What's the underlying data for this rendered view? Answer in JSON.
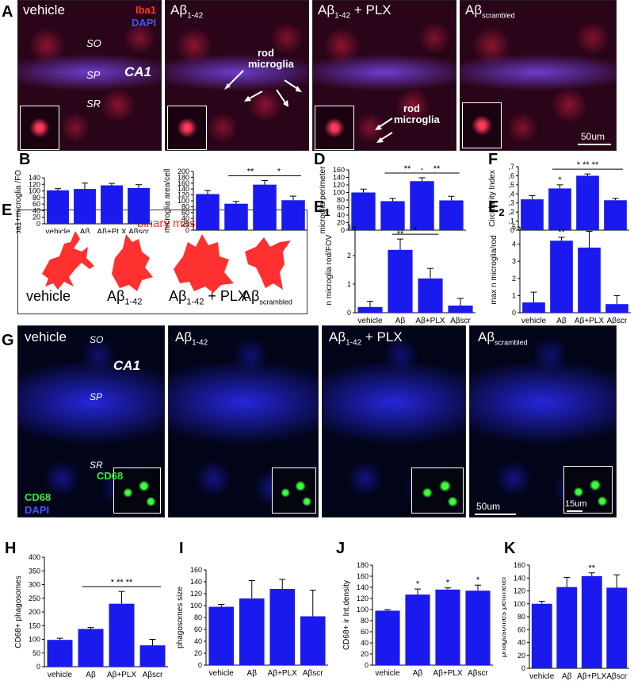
{
  "panel_letters": {
    "A": "A",
    "B": "B",
    "D": "D",
    "F": "F",
    "E": "E",
    "E1": "E",
    "E1_sub": "1",
    "E2": "E",
    "E2_sub": "2",
    "G": "G",
    "H": "H",
    "I": "I",
    "J": "J",
    "K": "K"
  },
  "micrographs_A": {
    "titles": [
      "vehicle",
      "Aβ",
      "Aβ",
      "Aβ"
    ],
    "title_subs": [
      "",
      "1-42",
      "1-42",
      "scrambled"
    ],
    "title_suffix": [
      "",
      "",
      " + PLX",
      ""
    ],
    "legend_iba1": "Iba1",
    "legend_dapi": "DAPI",
    "layers": {
      "so": "SO",
      "sp": "SP",
      "sr": "SR",
      "ca1": "CA1"
    },
    "rod_label_1": "rod",
    "rod_label_2": "microglia",
    "rod_label_3": "rod",
    "rod_label_4": "microglia",
    "scale": "50um"
  },
  "micrographs_G": {
    "titles": [
      "vehicle",
      "Aβ",
      "Aβ",
      "Aβ"
    ],
    "title_subs": [
      "",
      "1-42",
      "1-42",
      "scrambled"
    ],
    "title_suffix": [
      "",
      "",
      " + PLX",
      ""
    ],
    "layers": {
      "so": "SO",
      "sp": "SP",
      "sr": "SR",
      "ca1": "CA1"
    },
    "legend_cd68": "CD68",
    "legend_dapi": "DAPI",
    "inset_label": "CD68",
    "scale": "50um",
    "inset_scale": "15um"
  },
  "mask_panel": {
    "title": "binary mask",
    "labels": [
      "vehicle",
      "Aβ",
      "Aβ",
      "Aβ"
    ],
    "label_subs": [
      "",
      "1-42",
      "1-42",
      "scrambled"
    ],
    "label_suffix": [
      "",
      "",
      " + PLX",
      ""
    ]
  },
  "colors": {
    "bar": "#1a1aee",
    "mask": "#ff3030",
    "iba1": "#ff3333",
    "dapi": "#3344ff",
    "cd68": "#33ee33"
  },
  "chart_data": [
    {
      "id": "B1",
      "type": "bar",
      "categories": [
        "vehicle",
        "Aβ",
        "Aβ+PLX",
        "Aβscr"
      ],
      "values": [
        102,
        106,
        117,
        109
      ],
      "errors": [
        5,
        18,
        6,
        10
      ],
      "ylabel": "Iba1+microglia /FOV",
      "ylim": [
        0,
        140
      ],
      "yticks": [
        "0",
        "20",
        "40",
        "60",
        "80",
        "100",
        "120",
        "140"
      ],
      "sig": []
    },
    {
      "id": "B2",
      "type": "bar",
      "categories": [
        "vehicle",
        "Aβ",
        "Aβ+PLX",
        "Aβscr"
      ],
      "values": [
        123,
        90,
        155,
        102
      ],
      "errors": [
        12,
        8,
        14,
        14
      ],
      "ylabel": "microglia area/cell",
      "ylim": [
        0,
        200
      ],
      "yticks": [
        "0",
        "20",
        "40",
        "60",
        "80",
        "100",
        "120",
        "140",
        "160",
        "180",
        "200"
      ],
      "sig": [
        {
          "from": 1,
          "to": 2,
          "label": "**"
        },
        {
          "from": 2,
          "to": 3,
          "label": "*"
        }
      ]
    },
    {
      "id": "D",
      "type": "bar",
      "categories": [
        "vehicle",
        "Aβ",
        "Aβ+PLX",
        "Aβscr"
      ],
      "values": [
        100,
        77,
        130,
        79
      ],
      "errors": [
        9,
        7,
        9,
        11
      ],
      "ylabel": "microglia perimeter",
      "ylim": [
        0,
        160
      ],
      "yticks": [
        "0",
        "20",
        "40",
        "60",
        "80",
        "100",
        "120",
        "140",
        "160"
      ],
      "sig": [
        {
          "from": 1,
          "to": 2,
          "label": "**"
        },
        {
          "from": 2,
          "to": 3,
          "label": "**"
        }
      ],
      "extra_marks": [
        "-"
      ]
    },
    {
      "id": "F",
      "type": "bar",
      "categories": [
        "vehicle",
        "Aβ",
        "Aβ+PLX",
        "Aβscr"
      ],
      "values": [
        0.34,
        0.46,
        0.6,
        0.33
      ],
      "errors": [
        0.04,
        0.04,
        0.02,
        0.02
      ],
      "ylabel": "Circularity Index",
      "ylim": [
        0,
        0.7
      ],
      "yticks": [
        "0",
        ",1",
        ",2",
        ",3",
        ",4",
        ",5",
        ",6",
        ",7"
      ],
      "sig": [
        {
          "from": 1,
          "to": 3,
          "label": "*    **    **"
        }
      ],
      "bar_marks": [
        {
          "index": 1,
          "label": "*"
        }
      ]
    },
    {
      "id": "E1",
      "type": "bar",
      "categories": [
        "vehicle",
        "Aβ",
        "Aβ+PLX",
        "Aβscr"
      ],
      "values": [
        0.2,
        2.2,
        1.2,
        0.25
      ],
      "errors": [
        0.2,
        0.38,
        0.35,
        0.25
      ],
      "ylabel": "n microglia rod/FOV",
      "ylim": [
        0,
        3
      ],
      "yticks": [
        "0",
        "1",
        "2",
        "3"
      ],
      "sig": [
        {
          "from": 1,
          "to": 2,
          "label": "*"
        }
      ],
      "bar_marks": [
        {
          "index": 1,
          "label": "**"
        }
      ]
    },
    {
      "id": "E2",
      "type": "bar",
      "categories": [
        "vehicle",
        "Aβ",
        "Aβ+PLX",
        "Aβscr"
      ],
      "values": [
        0.6,
        4.2,
        3.8,
        0.5
      ],
      "errors": [
        0.6,
        0.2,
        0.95,
        0.5
      ],
      "ylabel": "max n microglia/rod",
      "ylim": [
        0,
        5
      ],
      "yticks": [
        "0",
        "1",
        "2",
        "3",
        "4",
        "5"
      ],
      "sig": [],
      "bar_marks": [
        {
          "index": 1,
          "label": "**"
        }
      ]
    },
    {
      "id": "H",
      "type": "bar",
      "categories": [
        "vehicle",
        "Aβ",
        "Aβ+PLX",
        "Aβscr"
      ],
      "values": [
        98,
        138,
        230,
        78
      ],
      "errors": [
        6,
        5,
        45,
        22
      ],
      "ylabel": "CD68+ phagosomes",
      "ylim": [
        0,
        400
      ],
      "yticks": [
        "0",
        "50",
        "100",
        "150",
        "200",
        "250",
        "300",
        "350",
        "400"
      ],
      "sig": [
        {
          "from": 1,
          "to": 3,
          "label": "*    **    **"
        }
      ]
    },
    {
      "id": "I",
      "type": "bar",
      "categories": [
        "vehicle",
        "Aβ",
        "Aβ+PLX",
        "Aβscr"
      ],
      "values": [
        98,
        112,
        128,
        82
      ],
      "errors": [
        4,
        30,
        16,
        44
      ],
      "ylabel": "phagosomes size",
      "ylim": [
        0,
        160
      ],
      "yticks": [
        "0",
        "20",
        "40",
        "60",
        "80",
        "100",
        "120",
        "140",
        "160"
      ],
      "sig": []
    },
    {
      "id": "J",
      "type": "bar",
      "categories": [
        "vehicle",
        "Aβ",
        "Aβ+PLX",
        "Aβscr"
      ],
      "values": [
        98,
        127,
        136,
        134
      ],
      "errors": [
        2,
        10,
        3,
        10
      ],
      "ylabel": "CD68+ ir Int.density",
      "ylim": [
        0,
        180
      ],
      "yticks": [
        "0",
        "20",
        "40",
        "60",
        "80",
        "100",
        "120",
        "140",
        "160",
        "180"
      ],
      "sig": [],
      "bar_marks": [
        {
          "index": 1,
          "label": "*"
        },
        {
          "index": 2,
          "label": "*"
        },
        {
          "index": 3,
          "label": "*"
        }
      ]
    },
    {
      "id": "K",
      "type": "bar",
      "categories": [
        "vehicle",
        "Aβ",
        "Aβ+PLX",
        "Aβscr"
      ],
      "values": [
        100,
        126,
        143,
        125
      ],
      "errors": [
        4,
        15,
        5,
        20
      ],
      "ylabel": "phagosomes perimeter",
      "ylim": [
        0,
        160
      ],
      "yticks": [
        "0",
        "20",
        "40",
        "60",
        "80",
        "100",
        "120",
        "140",
        "160"
      ],
      "sig": [],
      "bar_marks": [
        {
          "index": 2,
          "label": "**"
        }
      ]
    }
  ]
}
